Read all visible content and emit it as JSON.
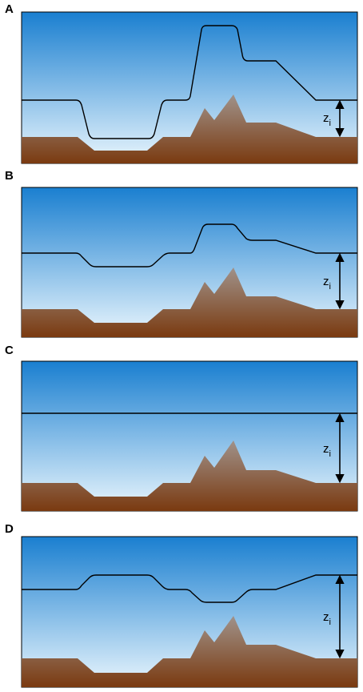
{
  "panels": [
    {
      "letter": "A",
      "zi_label": "z",
      "zi_subscript": "i"
    },
    {
      "letter": "B",
      "zi_label": "z",
      "zi_subscript": "i"
    },
    {
      "letter": "C",
      "zi_label": "z",
      "zi_subscript": "i"
    },
    {
      "letter": "D",
      "zi_label": "z",
      "zi_subscript": "i"
    }
  ],
  "colors": {
    "sky_top": "#1a7fd0",
    "sky_bottom": "#eaf6fd",
    "ground_top": "#9c8a80",
    "ground_bottom": "#7a3a10",
    "line": "#000000"
  }
}
